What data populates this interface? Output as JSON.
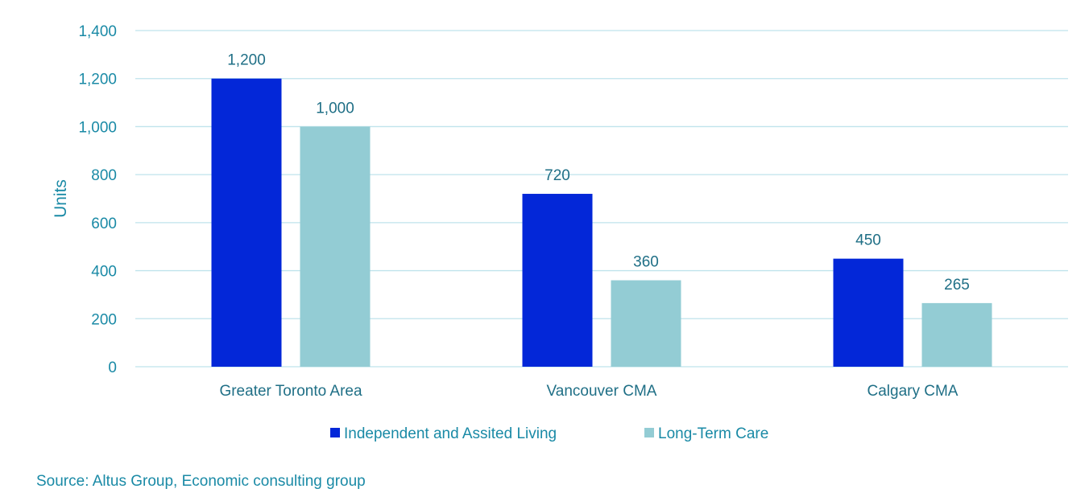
{
  "chart_data": {
    "type": "bar",
    "ylabel": "Units",
    "xlabel": "",
    "ylim": [
      0,
      1400
    ],
    "yticks": [
      0,
      200,
      400,
      600,
      800,
      1000,
      1200,
      1400
    ],
    "ytick_labels": [
      "0",
      "200",
      "400",
      "600",
      "800",
      "1,000",
      "1,200",
      "1,400"
    ],
    "grid": true,
    "categories": [
      "Greater Toronto Area",
      "Vancouver CMA",
      "Calgary CMA"
    ],
    "series": [
      {
        "name": "Independent and Assited Living",
        "color": "#0327d8",
        "values": [
          1200,
          720,
          450
        ],
        "labels": [
          "1,200",
          "720",
          "450"
        ]
      },
      {
        "name": "Long-Term Care",
        "color": "#93ccd4",
        "values": [
          1000,
          360,
          265
        ],
        "labels": [
          "1,000",
          "360",
          "265"
        ]
      }
    ],
    "legend_position": "bottom"
  },
  "source": "Source: Altus Group, Economic consulting group"
}
